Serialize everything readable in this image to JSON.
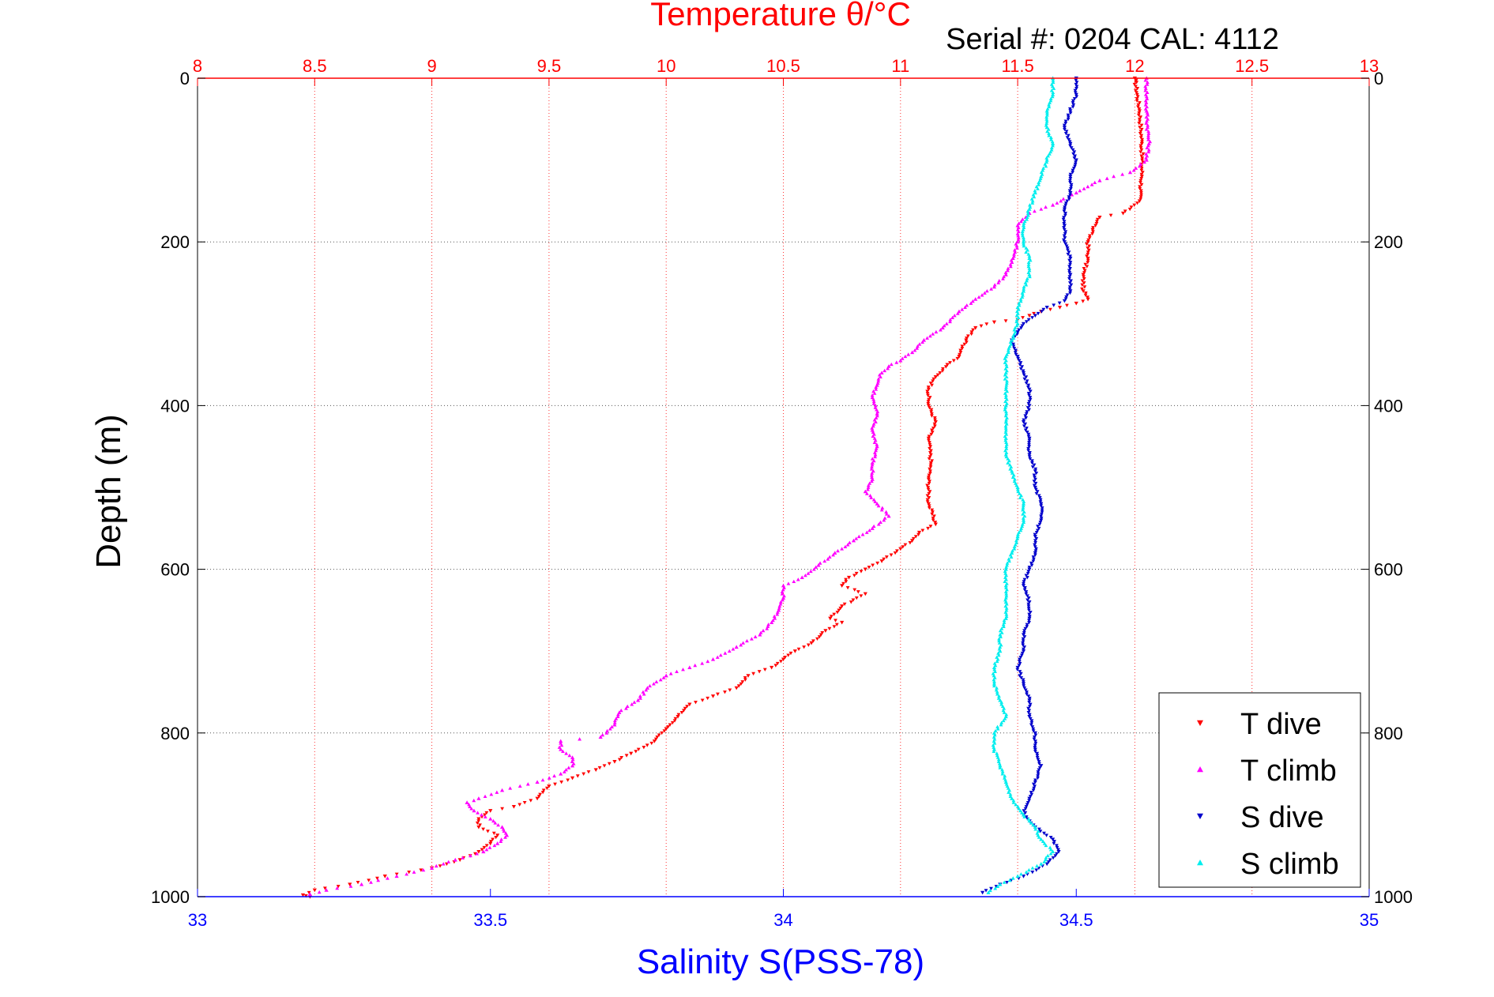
{
  "chart_data": {
    "type": "scatter",
    "title": "Temperature θ/°C",
    "subtitle": "Serial #: 0204  CAL: 4112",
    "ylabel": "Depth (m)",
    "xlabel_bottom": "Salinity S(PSS-78)",
    "xlabel_top": "Temperature θ/°C",
    "ylim": [
      1000,
      0
    ],
    "y_reversed": true,
    "y_ticks": [
      0,
      200,
      400,
      600,
      800,
      1000
    ],
    "x_top_lim": [
      8,
      13
    ],
    "x_top_ticks": [
      "8",
      "8.5",
      "9",
      "9.5",
      "10",
      "10.5",
      "11",
      "11.5",
      "12",
      "12.5",
      "13"
    ],
    "x_bottom_lim": [
      33,
      35
    ],
    "x_bottom_ticks": [
      "33",
      "33.5",
      "34",
      "34.5",
      "35"
    ],
    "grid": true,
    "legend_position": "bottom-right",
    "colors": {
      "title": "#ff0000",
      "salinity_axis": "#0000ff",
      "t_dive": "#ff0000",
      "t_climb": "#ff00ff",
      "s_dive": "#0000cc",
      "s_climb": "#00eeee",
      "grid": "#555555"
    },
    "series": [
      {
        "name": "T dive",
        "axis": "temperature",
        "marker": "triangle-down",
        "color": "#ff0000",
        "points": [
          [
            12.0,
            0
          ],
          [
            12.02,
            40
          ],
          [
            12.03,
            80
          ],
          [
            12.03,
            120
          ],
          [
            12.02,
            150
          ],
          [
            11.95,
            165
          ],
          [
            11.85,
            170
          ],
          [
            11.82,
            185
          ],
          [
            11.8,
            200
          ],
          [
            11.8,
            220
          ],
          [
            11.78,
            240
          ],
          [
            11.78,
            260
          ],
          [
            11.8,
            270
          ],
          [
            11.75,
            275
          ],
          [
            11.68,
            280
          ],
          [
            11.6,
            285
          ],
          [
            11.55,
            290
          ],
          [
            11.5,
            295
          ],
          [
            11.4,
            298
          ],
          [
            11.32,
            305
          ],
          [
            11.28,
            320
          ],
          [
            11.25,
            340
          ],
          [
            11.2,
            350
          ],
          [
            11.15,
            365
          ],
          [
            11.12,
            380
          ],
          [
            11.12,
            400
          ],
          [
            11.15,
            420
          ],
          [
            11.12,
            440
          ],
          [
            11.13,
            470
          ],
          [
            11.12,
            490
          ],
          [
            11.12,
            520
          ],
          [
            11.15,
            545
          ],
          [
            11.08,
            555
          ],
          [
            11.05,
            565
          ],
          [
            11.0,
            575
          ],
          [
            10.92,
            590
          ],
          [
            10.85,
            600
          ],
          [
            10.78,
            610
          ],
          [
            10.75,
            620
          ],
          [
            10.85,
            630
          ],
          [
            10.75,
            645
          ],
          [
            10.7,
            660
          ],
          [
            10.75,
            665
          ],
          [
            10.68,
            675
          ],
          [
            10.62,
            690
          ],
          [
            10.55,
            700
          ],
          [
            10.5,
            710
          ],
          [
            10.45,
            720
          ],
          [
            10.35,
            730
          ],
          [
            10.3,
            745
          ],
          [
            10.2,
            755
          ],
          [
            10.1,
            765
          ],
          [
            10.05,
            780
          ],
          [
            10.0,
            795
          ],
          [
            9.95,
            810
          ],
          [
            9.85,
            825
          ],
          [
            9.78,
            835
          ],
          [
            9.7,
            845
          ],
          [
            9.6,
            855
          ],
          [
            9.5,
            865
          ],
          [
            9.45,
            880
          ],
          [
            9.35,
            890
          ],
          [
            9.25,
            895
          ],
          [
            9.2,
            905
          ],
          [
            9.2,
            915
          ],
          [
            9.28,
            925
          ],
          [
            9.25,
            935
          ],
          [
            9.2,
            945
          ],
          [
            9.12,
            955
          ],
          [
            9.0,
            965
          ],
          [
            8.8,
            975
          ],
          [
            8.65,
            985
          ],
          [
            8.5,
            992
          ],
          [
            8.45,
            998
          ],
          [
            8.48,
            1000
          ]
        ]
      },
      {
        "name": "T climb",
        "axis": "temperature",
        "marker": "triangle-up",
        "color": "#ff00ff",
        "points": [
          [
            12.05,
            0
          ],
          [
            12.05,
            40
          ],
          [
            12.06,
            80
          ],
          [
            12.05,
            100
          ],
          [
            11.98,
            115
          ],
          [
            11.85,
            125
          ],
          [
            11.75,
            140
          ],
          [
            11.65,
            155
          ],
          [
            11.55,
            165
          ],
          [
            11.5,
            180
          ],
          [
            11.5,
            200
          ],
          [
            11.48,
            220
          ],
          [
            11.45,
            240
          ],
          [
            11.4,
            255
          ],
          [
            11.32,
            270
          ],
          [
            11.25,
            285
          ],
          [
            11.18,
            305
          ],
          [
            11.1,
            320
          ],
          [
            11.05,
            335
          ],
          [
            11.0,
            345
          ],
          [
            10.95,
            352
          ],
          [
            10.92,
            360
          ],
          [
            10.9,
            375
          ],
          [
            10.88,
            390
          ],
          [
            10.9,
            410
          ],
          [
            10.88,
            430
          ],
          [
            10.9,
            450
          ],
          [
            10.88,
            470
          ],
          [
            10.88,
            490
          ],
          [
            10.85,
            505
          ],
          [
            10.9,
            520
          ],
          [
            10.95,
            535
          ],
          [
            10.88,
            550
          ],
          [
            10.8,
            565
          ],
          [
            10.72,
            580
          ],
          [
            10.65,
            595
          ],
          [
            10.58,
            610
          ],
          [
            10.5,
            620
          ],
          [
            10.5,
            635
          ],
          [
            10.48,
            650
          ],
          [
            10.45,
            665
          ],
          [
            10.4,
            680
          ],
          [
            10.3,
            695
          ],
          [
            10.2,
            710
          ],
          [
            10.1,
            720
          ],
          [
            10.0,
            730
          ],
          [
            9.92,
            745
          ],
          [
            9.88,
            760
          ],
          [
            9.8,
            775
          ],
          [
            9.78,
            790
          ],
          [
            9.72,
            805
          ],
          [
            9.55,
            810
          ],
          [
            9.55,
            820
          ],
          [
            9.6,
            830
          ],
          [
            9.6,
            840
          ],
          [
            9.55,
            850
          ],
          [
            9.45,
            860
          ],
          [
            9.3,
            870
          ],
          [
            9.2,
            880
          ],
          [
            9.15,
            885
          ],
          [
            9.18,
            895
          ],
          [
            9.25,
            905
          ],
          [
            9.3,
            915
          ],
          [
            9.32,
            925
          ],
          [
            9.28,
            935
          ],
          [
            9.22,
            945
          ],
          [
            9.1,
            955
          ],
          [
            9.0,
            965
          ],
          [
            8.85,
            975
          ],
          [
            8.7,
            985
          ],
          [
            8.55,
            992
          ],
          [
            8.48,
            997
          ]
        ]
      },
      {
        "name": "S dive",
        "axis": "salinity",
        "marker": "triangle-down",
        "color": "#0000cc",
        "points": [
          [
            34.5,
            0
          ],
          [
            34.5,
            20
          ],
          [
            34.49,
            40
          ],
          [
            34.48,
            60
          ],
          [
            34.49,
            80
          ],
          [
            34.5,
            100
          ],
          [
            34.49,
            120
          ],
          [
            34.49,
            140
          ],
          [
            34.48,
            160
          ],
          [
            34.48,
            180
          ],
          [
            34.48,
            200
          ],
          [
            34.49,
            220
          ],
          [
            34.49,
            240
          ],
          [
            34.49,
            260
          ],
          [
            34.48,
            272
          ],
          [
            34.45,
            280
          ],
          [
            34.43,
            290
          ],
          [
            34.41,
            300
          ],
          [
            34.4,
            310
          ],
          [
            34.39,
            320
          ],
          [
            34.4,
            340
          ],
          [
            34.41,
            360
          ],
          [
            34.42,
            380
          ],
          [
            34.42,
            400
          ],
          [
            34.41,
            420
          ],
          [
            34.42,
            440
          ],
          [
            34.42,
            460
          ],
          [
            34.43,
            480
          ],
          [
            34.43,
            500
          ],
          [
            34.44,
            520
          ],
          [
            34.44,
            540
          ],
          [
            34.43,
            560
          ],
          [
            34.43,
            580
          ],
          [
            34.42,
            600
          ],
          [
            34.41,
            620
          ],
          [
            34.42,
            640
          ],
          [
            34.42,
            660
          ],
          [
            34.41,
            680
          ],
          [
            34.41,
            700
          ],
          [
            34.4,
            720
          ],
          [
            34.41,
            740
          ],
          [
            34.42,
            760
          ],
          [
            34.42,
            780
          ],
          [
            34.43,
            800
          ],
          [
            34.43,
            820
          ],
          [
            34.44,
            840
          ],
          [
            34.43,
            860
          ],
          [
            34.42,
            880
          ],
          [
            34.41,
            900
          ],
          [
            34.43,
            915
          ],
          [
            34.46,
            930
          ],
          [
            34.47,
            945
          ],
          [
            34.45,
            960
          ],
          [
            34.41,
            975
          ],
          [
            34.37,
            985
          ],
          [
            34.34,
            995
          ]
        ]
      },
      {
        "name": "S climb",
        "axis": "salinity",
        "marker": "triangle-up",
        "color": "#00eeee",
        "points": [
          [
            34.46,
            0
          ],
          [
            34.46,
            20
          ],
          [
            34.45,
            40
          ],
          [
            34.45,
            60
          ],
          [
            34.46,
            80
          ],
          [
            34.45,
            100
          ],
          [
            34.44,
            120
          ],
          [
            34.43,
            140
          ],
          [
            34.42,
            160
          ],
          [
            34.41,
            180
          ],
          [
            34.41,
            200
          ],
          [
            34.42,
            220
          ],
          [
            34.42,
            240
          ],
          [
            34.41,
            260
          ],
          [
            34.4,
            280
          ],
          [
            34.4,
            300
          ],
          [
            34.39,
            320
          ],
          [
            34.38,
            340
          ],
          [
            34.38,
            360
          ],
          [
            34.38,
            380
          ],
          [
            34.38,
            400
          ],
          [
            34.38,
            420
          ],
          [
            34.38,
            440
          ],
          [
            34.38,
            460
          ],
          [
            34.39,
            480
          ],
          [
            34.4,
            500
          ],
          [
            34.41,
            520
          ],
          [
            34.41,
            540
          ],
          [
            34.4,
            560
          ],
          [
            34.39,
            580
          ],
          [
            34.38,
            600
          ],
          [
            34.38,
            620
          ],
          [
            34.38,
            640
          ],
          [
            34.38,
            660
          ],
          [
            34.37,
            680
          ],
          [
            34.37,
            700
          ],
          [
            34.36,
            720
          ],
          [
            34.36,
            740
          ],
          [
            34.37,
            760
          ],
          [
            34.38,
            780
          ],
          [
            34.36,
            800
          ],
          [
            34.36,
            820
          ],
          [
            34.37,
            840
          ],
          [
            34.38,
            860
          ],
          [
            34.39,
            880
          ],
          [
            34.41,
            900
          ],
          [
            34.43,
            915
          ],
          [
            34.44,
            930
          ],
          [
            34.46,
            945
          ],
          [
            34.44,
            960
          ],
          [
            34.4,
            975
          ],
          [
            34.37,
            985
          ],
          [
            34.35,
            995
          ]
        ]
      }
    ]
  }
}
